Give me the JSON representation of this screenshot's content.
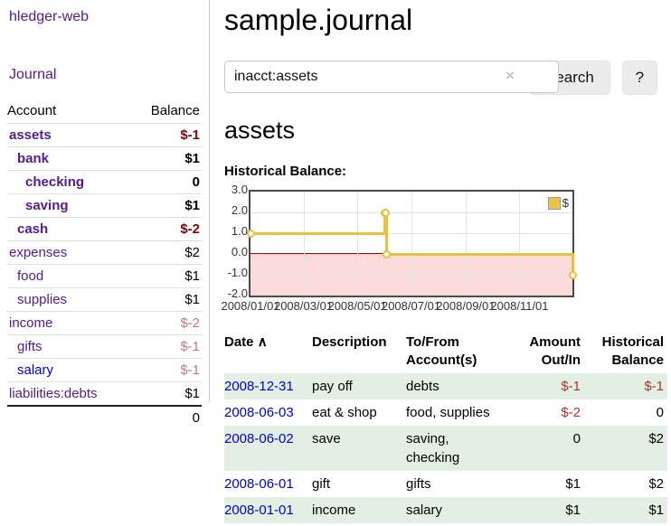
{
  "app": {
    "title": "hledger-web",
    "nav_journal_label": "Journal"
  },
  "sidebar": {
    "columns": {
      "account": "Account",
      "balance": "Balance"
    },
    "accounts": [
      {
        "name": "assets",
        "indent": 1,
        "bold": true,
        "balance": "$-1",
        "balance_style": "neg-strong",
        "link_style": "visited"
      },
      {
        "name": "bank",
        "indent": 2,
        "bold": true,
        "balance": "$1",
        "balance_style": "pos",
        "link_style": "visited"
      },
      {
        "name": "checking",
        "indent": 3,
        "bold": true,
        "balance": "0",
        "balance_style": "pos",
        "link_style": "visited"
      },
      {
        "name": "saving",
        "indent": 3,
        "bold": true,
        "balance": "$1",
        "balance_style": "pos",
        "link_style": "visited"
      },
      {
        "name": "cash",
        "indent": 2,
        "bold": true,
        "balance": "$-2",
        "balance_style": "neg-strong",
        "link_style": "visited"
      },
      {
        "name": "expenses",
        "indent": 1,
        "bold": false,
        "balance": "$2",
        "balance_style": "pos",
        "link_style": "visited"
      },
      {
        "name": "food",
        "indent": 2,
        "bold": false,
        "balance": "$1",
        "balance_style": "pos",
        "link_style": "visited"
      },
      {
        "name": "supplies",
        "indent": 2,
        "bold": false,
        "balance": "$1",
        "balance_style": "pos",
        "link_style": "visited"
      },
      {
        "name": "income",
        "indent": 1,
        "bold": false,
        "balance": "$-2",
        "balance_style": "neg-soft",
        "link_style": "visited"
      },
      {
        "name": "gifts",
        "indent": 2,
        "bold": false,
        "balance": "$-1",
        "balance_style": "neg-soft",
        "link_style": "visited"
      },
      {
        "name": "salary",
        "indent": 2,
        "bold": false,
        "balance": "$-1",
        "balance_style": "neg-soft",
        "link_style": "unvisited"
      },
      {
        "name": "liabilities:debts",
        "indent": 1,
        "bold": false,
        "balance": "$1",
        "balance_style": "pos",
        "link_style": "visited"
      }
    ],
    "total": "0"
  },
  "header": {
    "title": "sample.journal"
  },
  "search": {
    "value": "inacct:assets",
    "clear_icon": "×",
    "button_label": "Search",
    "help_label": "?"
  },
  "account_page": {
    "heading": "assets",
    "chart_label": "Historical Balance:"
  },
  "chart_data": {
    "type": "line",
    "title": "Historical Balance:",
    "x_range": [
      "2008-01-01",
      "2008-12-31"
    ],
    "ylim": [
      -2,
      3
    ],
    "y_ticks": [
      "3.0",
      "2.0",
      "1.0",
      "0.0",
      "-1.0",
      "-2.0"
    ],
    "x_ticks": [
      "2008/01/01",
      "2008/03/01",
      "2008/05/01",
      "2008/07/01",
      "2008/09/01",
      "2008/11/01"
    ],
    "legend": [
      {
        "label": "$",
        "color": "#edc240"
      }
    ],
    "legend_position": "top-right",
    "grid": true,
    "step_line": true,
    "series": [
      {
        "name": "$",
        "points": [
          {
            "x": "2008-01-01",
            "y": 1
          },
          {
            "x": "2008-06-01",
            "y": 2
          },
          {
            "x": "2008-06-02",
            "y": 2
          },
          {
            "x": "2008-06-03",
            "y": 0
          },
          {
            "x": "2008-12-31",
            "y": -1
          }
        ]
      }
    ],
    "colors": {
      "line": "#e9c13d",
      "marker_fill": "#ffffff",
      "negative_region": "#fbdada",
      "zero_line": "#a00000",
      "plot_border": "#4a4a4a",
      "gridline": "#e4e4e4"
    }
  },
  "register": {
    "headers": {
      "date": "Date",
      "sort_icon": "∧",
      "description": "Description",
      "accounts": "To/From Account(s)",
      "amount": "Amount Out/In",
      "balance": "Historical Balance"
    },
    "rows": [
      {
        "date": "2008-12-31",
        "description": "pay off",
        "accounts": "debts",
        "amount": "$-1",
        "amount_neg": true,
        "balance": "$-1",
        "balance_neg": true,
        "striped": true
      },
      {
        "date": "2008-06-03",
        "description": "eat & shop",
        "accounts": "food, supplies",
        "amount": "$-2",
        "amount_neg": true,
        "balance": "0",
        "balance_neg": false,
        "striped": false
      },
      {
        "date": "2008-06-02",
        "description": "save",
        "accounts": "saving, checking",
        "amount": "0",
        "amount_neg": false,
        "balance": "$2",
        "balance_neg": false,
        "striped": true
      },
      {
        "date": "2008-06-01",
        "description": "gift",
        "accounts": "gifts",
        "amount": "$1",
        "amount_neg": false,
        "balance": "$2",
        "balance_neg": false,
        "striped": false
      },
      {
        "date": "2008-01-01",
        "description": "income",
        "accounts": "salary",
        "amount": "$1",
        "amount_neg": false,
        "balance": "$1",
        "balance_neg": false,
        "striped": true
      }
    ]
  },
  "colors": {
    "link_visited": "#551a8b",
    "link_unvisited": "#0000cc",
    "negative_strong": "#7d0600",
    "negative_soft": "#c07a82",
    "negative_table": "#a33333",
    "row_stripe": "#e3efe3"
  }
}
